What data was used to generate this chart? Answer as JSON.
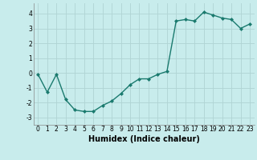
{
  "x": [
    0,
    1,
    2,
    3,
    4,
    5,
    6,
    7,
    8,
    9,
    10,
    11,
    12,
    13,
    14,
    15,
    16,
    17,
    18,
    19,
    20,
    21,
    22,
    23
  ],
  "y": [
    -0.1,
    -1.3,
    -0.1,
    -1.8,
    -2.5,
    -2.6,
    -2.6,
    -2.2,
    -1.9,
    -1.4,
    -0.8,
    -0.4,
    -0.4,
    -0.1,
    0.1,
    3.5,
    3.6,
    3.5,
    4.1,
    3.9,
    3.7,
    3.6,
    3.0,
    3.3
  ],
  "line_color": "#1a7a6e",
  "marker": "D",
  "markersize": 2.0,
  "linewidth": 1.0,
  "bg_color": "#c8ecec",
  "grid_color": "#b0d4d4",
  "xlabel": "Humidex (Indice chaleur)",
  "xlabel_fontsize": 7,
  "yticks": [
    -3,
    -2,
    -1,
    0,
    1,
    2,
    3,
    4
  ],
  "xticks": [
    0,
    1,
    2,
    3,
    4,
    5,
    6,
    7,
    8,
    9,
    10,
    11,
    12,
    13,
    14,
    15,
    16,
    17,
    18,
    19,
    20,
    21,
    22,
    23
  ],
  "ylim": [
    -3.5,
    4.7
  ],
  "xlim": [
    -0.5,
    23.5
  ],
  "tick_fontsize": 5.5
}
